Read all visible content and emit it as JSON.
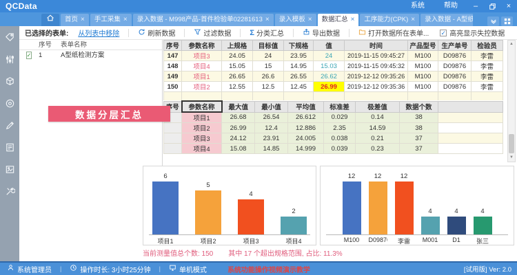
{
  "app": {
    "title": "QCData",
    "menu_system": "系统",
    "menu_help": "帮助",
    "version": "[试用版] Ver: 2.0"
  },
  "tabs": [
    {
      "label": "首页",
      "active": false
    },
    {
      "label": "手工采集",
      "active": false
    },
    {
      "label": "录入数据 - M998产品-首件检验单02281613",
      "active": false
    },
    {
      "label": "录入模板",
      "active": false
    },
    {
      "label": "数据汇总",
      "active": true
    },
    {
      "label": "工序能力(CPK)",
      "active": false
    },
    {
      "label": "录入数据 - A型纸检测方案",
      "active": false
    }
  ],
  "toolbar": {
    "selected_forms_label": "已选择的表单:",
    "remove_link": "从列表中移除",
    "refresh": "刷新数据",
    "filter": "过滤数据",
    "group": "分类汇总",
    "export": "导出数据",
    "open_form": "打开数据所在表单...",
    "highlight": "高亮显示失控数据",
    "highlight_checked": "✓"
  },
  "form_list": {
    "col_no": "序号",
    "col_name": "表单名称",
    "rows": [
      {
        "no": "1",
        "name": "A型纸检测方案",
        "checked": true
      }
    ]
  },
  "banner_text": "数据分层汇总",
  "measurement_table": {
    "headers": [
      "序号",
      "参数名称",
      "上规格",
      "目标值",
      "下规格",
      "值",
      "时间",
      "产品型号",
      "生产单号",
      "检验员"
    ],
    "rows": [
      {
        "cells": [
          "147",
          "项目3",
          "24.05",
          "24",
          "23.95",
          "24",
          "2019-11-15 09:45:27",
          "M100",
          "D09876",
          "李雷"
        ],
        "alert": false
      },
      {
        "cells": [
          "148",
          "项目4",
          "15.05",
          "15",
          "14.95",
          "15.03",
          "2019-11-15 09:45:32",
          "M100",
          "D09876",
          "李雷"
        ],
        "alert": false
      },
      {
        "cells": [
          "149",
          "项目1",
          "26.65",
          "26.6",
          "26.55",
          "26.62",
          "2019-12-12 09:35:26",
          "M100",
          "D09876",
          "李雷"
        ],
        "alert": false
      },
      {
        "cells": [
          "150",
          "项目2",
          "12.55",
          "12.5",
          "12.45",
          "26.99",
          "2019-12-12 09:35:36",
          "M100",
          "D09876",
          "李雷"
        ],
        "alert": true
      }
    ]
  },
  "summary_table": {
    "headers": [
      "序号",
      "参数名称",
      "最大值",
      "最小值",
      "平均值",
      "标准差",
      "极差值",
      "数据个数"
    ],
    "rows": [
      [
        "",
        "项目1",
        "26.68",
        "26.54",
        "26.612",
        "0.029",
        "0.14",
        "38"
      ],
      [
        "",
        "项目2",
        "26.99",
        "12.4",
        "12.886",
        "2.35",
        "14.59",
        "38"
      ],
      [
        "",
        "项目3",
        "24.12",
        "23.91",
        "24.005",
        "0.038",
        "0.21",
        "37"
      ],
      [
        "",
        "项目4",
        "15.08",
        "14.85",
        "14.999",
        "0.039",
        "0.23",
        "37"
      ]
    ]
  },
  "chart_data": [
    {
      "type": "bar",
      "categories": [
        "项目1",
        "项目2",
        "项目3",
        "项目4"
      ],
      "values": [
        6,
        5,
        4,
        2
      ],
      "colors": [
        "#4673c2",
        "#f5a23b",
        "#f1501f",
        "#55a2af"
      ],
      "title": "",
      "xlabel": "",
      "ylabel": "",
      "ylim": [
        0,
        7
      ],
      "legend": "none",
      "grid": false
    },
    {
      "type": "bar",
      "categories": [
        "M100",
        "D09876",
        "李雷",
        "M001",
        "D1",
        "张三"
      ],
      "values": [
        12,
        12,
        12,
        4,
        4,
        4
      ],
      "colors": [
        "#4673c2",
        "#f5a23b",
        "#f1501f",
        "#55a2af",
        "#2f4b7c",
        "#27996f"
      ],
      "title": "",
      "xlabel": "",
      "ylabel": "",
      "ylim": [
        0,
        14
      ],
      "legend": "none",
      "grid": false
    }
  ],
  "stats_line": {
    "part1": "当前测量值总个数: 150",
    "part2": "其中 17 个超出规格范围, 占比: 11.3%"
  },
  "status_bar": {
    "user": "系统管理员",
    "duration": "操作时长: 3小时25分钟",
    "mode": "单机模式",
    "notice": "系统功能操作视频演示教学"
  },
  "colors": {
    "accent": "#3b88d9",
    "alert_bg": "#ffff00",
    "alert_text": "#e02222",
    "value_text": "#3aa4b4",
    "param_text": "#e4607e",
    "banner_bg": "#ea5a74",
    "summary_name_bg": "#f6cad0",
    "summary_data_bg": "#eaf0da"
  }
}
